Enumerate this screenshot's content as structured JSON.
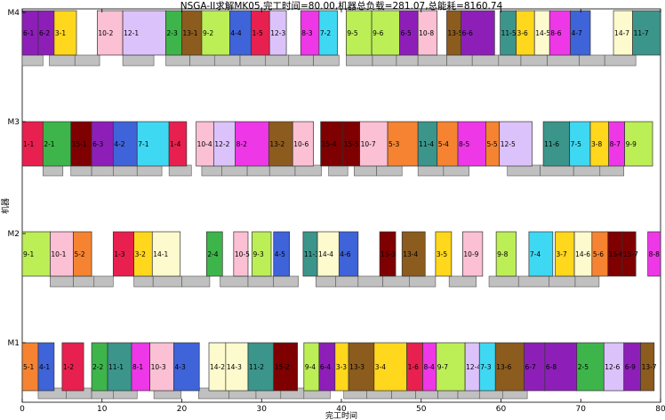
{
  "chart_data": {
    "type": "gantt",
    "title": "NSGA-II求解MK05,完工时间=80.00,机器总负载=281.07,总能耗=8160.74",
    "xlabel": "完工时间",
    "ylabel": "机器",
    "xlim": [
      0,
      80
    ],
    "xticks": [
      0,
      10,
      20,
      30,
      40,
      50,
      60,
      70,
      80
    ],
    "machines": [
      "M1",
      "M2",
      "M3",
      "M4"
    ],
    "job_colors": {
      "1": "#e8204f",
      "2": "#3db54a",
      "3": "#ffd71c",
      "4": "#3f63d8",
      "5": "#f58331",
      "6": "#8d1fb8",
      "7": "#3fd8f2",
      "8": "#ee37e7",
      "9": "#bcee56",
      "10": "#fbc0d3",
      "11": "#3b958a",
      "12": "#dcc2fb",
      "13": "#8c5b1e",
      "14": "#fdfacd",
      "15": "#7f0000"
    },
    "setup_color": "#c0c0c0",
    "tasks": [
      {
        "m": "M1",
        "label": "5-1",
        "job": 5,
        "start": 0.0,
        "end": 2.0
      },
      {
        "m": "M1",
        "label": "4-1",
        "job": 4,
        "start": 2.0,
        "end": 4.0
      },
      {
        "m": "M1",
        "label": "1-2",
        "job": 1,
        "start": 5.0,
        "end": 7.7
      },
      {
        "m": "M1",
        "label": "2-2",
        "job": 2,
        "start": 8.7,
        "end": 10.7
      },
      {
        "m": "M1",
        "label": "11-1",
        "job": 11,
        "start": 10.7,
        "end": 13.7
      },
      {
        "m": "M1",
        "label": "8-1",
        "job": 8,
        "start": 13.7,
        "end": 16.0
      },
      {
        "m": "M1",
        "label": "10-3",
        "job": 10,
        "start": 16.0,
        "end": 19.0
      },
      {
        "m": "M1",
        "label": "4-3",
        "job": 4,
        "start": 19.0,
        "end": 22.2
      },
      {
        "m": "M1",
        "label": "14-2",
        "job": 14,
        "start": 23.4,
        "end": 25.5
      },
      {
        "m": "M1",
        "label": "14-3",
        "job": 14,
        "start": 25.5,
        "end": 28.3
      },
      {
        "m": "M1",
        "label": "11-2",
        "job": 11,
        "start": 28.3,
        "end": 31.5
      },
      {
        "m": "M1",
        "label": "15-2",
        "job": 15,
        "start": 31.5,
        "end": 34.5
      },
      {
        "m": "M1",
        "label": "9-4",
        "job": 9,
        "start": 35.3,
        "end": 37.2
      },
      {
        "m": "M1",
        "label": "6-4",
        "job": 6,
        "start": 37.2,
        "end": 39.2
      },
      {
        "m": "M1",
        "label": "3-3",
        "job": 3,
        "start": 39.2,
        "end": 40.9
      },
      {
        "m": "M1",
        "label": "13-3",
        "job": 13,
        "start": 40.9,
        "end": 44.1
      },
      {
        "m": "M1",
        "label": "3-4",
        "job": 3,
        "start": 44.1,
        "end": 48.2
      },
      {
        "m": "M1",
        "label": "1-6",
        "job": 1,
        "start": 48.2,
        "end": 50.2
      },
      {
        "m": "M1",
        "label": "8-4",
        "job": 8,
        "start": 50.2,
        "end": 51.9
      },
      {
        "m": "M1",
        "label": "9-7",
        "job": 9,
        "start": 51.9,
        "end": 55.5
      },
      {
        "m": "M1",
        "label": "12-4",
        "job": 12,
        "start": 55.5,
        "end": 57.3
      },
      {
        "m": "M1",
        "label": "7-3",
        "job": 7,
        "start": 57.3,
        "end": 59.3
      },
      {
        "m": "M1",
        "label": "13-6",
        "job": 13,
        "start": 59.3,
        "end": 62.9
      },
      {
        "m": "M1",
        "label": "6-7",
        "job": 6,
        "start": 62.9,
        "end": 65.5
      },
      {
        "m": "M1",
        "label": "6-8",
        "job": 6,
        "start": 65.5,
        "end": 69.5
      },
      {
        "m": "M1",
        "label": "2-5",
        "job": 2,
        "start": 69.5,
        "end": 72.9
      },
      {
        "m": "M1",
        "label": "12-6",
        "job": 12,
        "start": 72.9,
        "end": 75.4
      },
      {
        "m": "M1",
        "label": "6-9",
        "job": 6,
        "start": 75.4,
        "end": 77.5
      },
      {
        "m": "M1",
        "label": "13-7",
        "job": 13,
        "start": 77.5,
        "end": 79.2
      },
      {
        "m": "M2",
        "label": "9-1",
        "job": 9,
        "start": 0.0,
        "end": 3.5
      },
      {
        "m": "M2",
        "label": "10-1",
        "job": 10,
        "start": 3.5,
        "end": 6.4
      },
      {
        "m": "M2",
        "label": "5-2",
        "job": 5,
        "start": 6.4,
        "end": 8.7
      },
      {
        "m": "M2",
        "label": "1-3",
        "job": 1,
        "start": 11.4,
        "end": 14.0
      },
      {
        "m": "M2",
        "label": "3-2",
        "job": 3,
        "start": 14.0,
        "end": 16.3
      },
      {
        "m": "M2",
        "label": "14-1",
        "job": 14,
        "start": 16.3,
        "end": 19.8
      },
      {
        "m": "M2",
        "label": "2-4",
        "job": 2,
        "start": 23.1,
        "end": 25.1
      },
      {
        "m": "M2",
        "label": "10-5",
        "job": 10,
        "start": 26.5,
        "end": 28.3
      },
      {
        "m": "M2",
        "label": "9-3",
        "job": 9,
        "start": 28.8,
        "end": 31.2
      },
      {
        "m": "M2",
        "label": "4-5",
        "job": 4,
        "start": 31.5,
        "end": 33.5
      },
      {
        "m": "M2",
        "label": "11-3",
        "job": 11,
        "start": 35.2,
        "end": 37.0
      },
      {
        "m": "M2",
        "label": "14-4",
        "job": 14,
        "start": 37.0,
        "end": 39.7
      },
      {
        "m": "M2",
        "label": "4-6",
        "job": 4,
        "start": 39.7,
        "end": 42.1
      },
      {
        "m": "M2",
        "label": "15-3",
        "job": 15,
        "start": 44.8,
        "end": 46.8
      },
      {
        "m": "M2",
        "label": "13-4",
        "job": 13,
        "start": 47.6,
        "end": 50.5
      },
      {
        "m": "M2",
        "label": "3-5",
        "job": 3,
        "start": 51.8,
        "end": 53.8
      },
      {
        "m": "M2",
        "label": "10-9",
        "job": 10,
        "start": 55.2,
        "end": 57.7
      },
      {
        "m": "M2",
        "label": "9-8",
        "job": 9,
        "start": 59.4,
        "end": 61.9
      },
      {
        "m": "M2",
        "label": "7-4",
        "job": 7,
        "start": 63.5,
        "end": 66.5
      },
      {
        "m": "M2",
        "label": "3-7",
        "job": 3,
        "start": 66.8,
        "end": 69.2
      },
      {
        "m": "M2",
        "label": "14-6",
        "job": 14,
        "start": 69.2,
        "end": 71.4
      },
      {
        "m": "M2",
        "label": "5-6",
        "job": 5,
        "start": 71.4,
        "end": 73.4
      },
      {
        "m": "M2",
        "label": "15-6",
        "job": 15,
        "start": 73.4,
        "end": 75.2
      },
      {
        "m": "M2",
        "label": "15-7",
        "job": 15,
        "start": 75.2,
        "end": 76.9
      },
      {
        "m": "M2",
        "label": "8-8",
        "job": 8,
        "start": 78.4,
        "end": 80.0
      },
      {
        "m": "M3",
        "label": "1-1",
        "job": 1,
        "start": 0.0,
        "end": 2.6
      },
      {
        "m": "M3",
        "label": "2-1",
        "job": 2,
        "start": 2.6,
        "end": 6.1
      },
      {
        "m": "M3",
        "label": "15-1",
        "job": 15,
        "start": 6.1,
        "end": 8.7
      },
      {
        "m": "M3",
        "label": "6-3",
        "job": 6,
        "start": 8.7,
        "end": 11.4
      },
      {
        "m": "M3",
        "label": "4-2",
        "job": 4,
        "start": 11.4,
        "end": 14.4
      },
      {
        "m": "M3",
        "label": "7-1",
        "job": 7,
        "start": 14.4,
        "end": 18.4
      },
      {
        "m": "M3",
        "label": "1-4",
        "job": 1,
        "start": 18.4,
        "end": 20.6
      },
      {
        "m": "M3",
        "label": "10-4",
        "job": 10,
        "start": 21.8,
        "end": 24.0
      },
      {
        "m": "M3",
        "label": "12-2",
        "job": 12,
        "start": 24.0,
        "end": 26.7
      },
      {
        "m": "M3",
        "label": "8-2",
        "job": 8,
        "start": 26.7,
        "end": 30.9
      },
      {
        "m": "M3",
        "label": "13-2",
        "job": 13,
        "start": 30.9,
        "end": 33.9
      },
      {
        "m": "M3",
        "label": "10-6",
        "job": 10,
        "start": 33.9,
        "end": 36.5
      },
      {
        "m": "M3",
        "label": "15-4",
        "job": 15,
        "start": 37.4,
        "end": 40.2
      },
      {
        "m": "M3",
        "label": "15-5",
        "job": 15,
        "start": 40.2,
        "end": 42.3
      },
      {
        "m": "M3",
        "label": "10-7",
        "job": 10,
        "start": 42.3,
        "end": 45.8
      },
      {
        "m": "M3",
        "label": "5-3",
        "job": 5,
        "start": 45.8,
        "end": 49.6
      },
      {
        "m": "M3",
        "label": "11-4",
        "job": 11,
        "start": 49.6,
        "end": 52.0
      },
      {
        "m": "M3",
        "label": "5-4",
        "job": 5,
        "start": 52.0,
        "end": 54.6
      },
      {
        "m": "M3",
        "label": "8-5",
        "job": 8,
        "start": 54.6,
        "end": 58.1
      },
      {
        "m": "M3",
        "label": "5-5",
        "job": 5,
        "start": 58.1,
        "end": 59.8
      },
      {
        "m": "M3",
        "label": "12-5",
        "job": 12,
        "start": 59.8,
        "end": 63.9
      },
      {
        "m": "M3",
        "label": "11-6",
        "job": 11,
        "start": 65.3,
        "end": 68.6
      },
      {
        "m": "M3",
        "label": "7-5",
        "job": 7,
        "start": 68.6,
        "end": 71.2
      },
      {
        "m": "M3",
        "label": "3-8",
        "job": 3,
        "start": 71.2,
        "end": 73.5
      },
      {
        "m": "M3",
        "label": "8-7",
        "job": 8,
        "start": 73.5,
        "end": 75.5
      },
      {
        "m": "M3",
        "label": "9-9",
        "job": 9,
        "start": 75.5,
        "end": 79.0
      },
      {
        "m": "M4",
        "label": "6-1",
        "job": 6,
        "start": 0.0,
        "end": 2.0
      },
      {
        "m": "M4",
        "label": "6-2",
        "job": 6,
        "start": 2.0,
        "end": 4.0
      },
      {
        "m": "M4",
        "label": "3-1",
        "job": 3,
        "start": 4.0,
        "end": 6.8
      },
      {
        "m": "M4",
        "label": "10-2",
        "job": 10,
        "start": 9.4,
        "end": 12.6
      },
      {
        "m": "M4",
        "label": "12-1",
        "job": 12,
        "start": 12.6,
        "end": 18.0
      },
      {
        "m": "M4",
        "label": "2-3",
        "job": 2,
        "start": 18.0,
        "end": 20.0
      },
      {
        "m": "M4",
        "label": "13-1",
        "job": 13,
        "start": 20.0,
        "end": 22.5
      },
      {
        "m": "M4",
        "label": "9-2",
        "job": 9,
        "start": 22.5,
        "end": 26.0
      },
      {
        "m": "M4",
        "label": "4-4",
        "job": 4,
        "start": 26.0,
        "end": 28.7
      },
      {
        "m": "M4",
        "label": "1-5",
        "job": 1,
        "start": 28.7,
        "end": 31.0
      },
      {
        "m": "M4",
        "label": "12-3",
        "job": 12,
        "start": 31.0,
        "end": 33.1
      },
      {
        "m": "M4",
        "label": "8-3",
        "job": 8,
        "start": 34.9,
        "end": 37.2
      },
      {
        "m": "M4",
        "label": "7-2",
        "job": 7,
        "start": 37.2,
        "end": 39.5
      },
      {
        "m": "M4",
        "label": "9-5",
        "job": 9,
        "start": 40.6,
        "end": 43.8
      },
      {
        "m": "M4",
        "label": "9-6",
        "job": 9,
        "start": 43.8,
        "end": 47.3
      },
      {
        "m": "M4",
        "label": "6-5",
        "job": 6,
        "start": 47.3,
        "end": 49.6
      },
      {
        "m": "M4",
        "label": "10-8",
        "job": 10,
        "start": 49.6,
        "end": 52.0
      },
      {
        "m": "M4",
        "label": "13-5",
        "job": 13,
        "start": 53.2,
        "end": 55.0
      },
      {
        "m": "M4",
        "label": "6-6",
        "job": 6,
        "start": 55.0,
        "end": 59.2
      },
      {
        "m": "M4",
        "label": "11-5",
        "job": 11,
        "start": 59.9,
        "end": 61.9
      },
      {
        "m": "M4",
        "label": "3-6",
        "job": 3,
        "start": 61.9,
        "end": 64.2
      },
      {
        "m": "M4",
        "label": "14-5",
        "job": 14,
        "start": 64.2,
        "end": 66.1
      },
      {
        "m": "M4",
        "label": "8-6",
        "job": 8,
        "start": 66.1,
        "end": 68.7
      },
      {
        "m": "M4",
        "label": "4-7",
        "job": 4,
        "start": 68.7,
        "end": 71.2
      },
      {
        "m": "M4",
        "label": "14-7",
        "job": 14,
        "start": 74.1,
        "end": 76.5
      },
      {
        "m": "M4",
        "label": "11-7",
        "job": 11,
        "start": 76.5,
        "end": 80.0
      }
    ],
    "setups": [
      {
        "m": "M1",
        "start": 2.0,
        "end": 5.5
      },
      {
        "m": "M1",
        "start": 5.5,
        "end": 8.7
      },
      {
        "m": "M1",
        "start": 8.7,
        "end": 11.4
      },
      {
        "m": "M1",
        "start": 11.4,
        "end": 14.4
      },
      {
        "m": "M1",
        "start": 16.5,
        "end": 19.9
      },
      {
        "m": "M1",
        "start": 22.1,
        "end": 25.9
      },
      {
        "m": "M1",
        "start": 25.9,
        "end": 29.3
      },
      {
        "m": "M1",
        "start": 29.3,
        "end": 32.4
      },
      {
        "m": "M1",
        "start": 32.4,
        "end": 35.3
      },
      {
        "m": "M1",
        "start": 35.3,
        "end": 38.6
      },
      {
        "m": "M1",
        "start": 40.3,
        "end": 43.2
      },
      {
        "m": "M1",
        "start": 43.2,
        "end": 46.3
      },
      {
        "m": "M1",
        "start": 46.3,
        "end": 49.3
      },
      {
        "m": "M1",
        "start": 49.3,
        "end": 52.1
      },
      {
        "m": "M1",
        "start": 52.1,
        "end": 54.6
      },
      {
        "m": "M1",
        "start": 54.6,
        "end": 57.3
      },
      {
        "m": "M1",
        "start": 57.3,
        "end": 60.2
      },
      {
        "m": "M1",
        "start": 60.2,
        "end": 63.3
      },
      {
        "m": "M2",
        "start": 3.5,
        "end": 6.4
      },
      {
        "m": "M2",
        "start": 6.4,
        "end": 9.0
      },
      {
        "m": "M2",
        "start": 9.0,
        "end": 11.4
      },
      {
        "m": "M2",
        "start": 14.0,
        "end": 16.4
      },
      {
        "m": "M2",
        "start": 16.4,
        "end": 20.0
      },
      {
        "m": "M2",
        "start": 20.0,
        "end": 23.5
      },
      {
        "m": "M2",
        "start": 24.8,
        "end": 28.3
      },
      {
        "m": "M2",
        "start": 28.3,
        "end": 31.5
      },
      {
        "m": "M2",
        "start": 31.5,
        "end": 34.6
      },
      {
        "m": "M2",
        "start": 36.8,
        "end": 39.3
      },
      {
        "m": "M2",
        "start": 39.3,
        "end": 42.1
      },
      {
        "m": "M2",
        "start": 42.1,
        "end": 45.2
      },
      {
        "m": "M2",
        "start": 45.2,
        "end": 48.5
      },
      {
        "m": "M2",
        "start": 48.5,
        "end": 51.8
      },
      {
        "m": "M2",
        "start": 53.5,
        "end": 56.9
      },
      {
        "m": "M2",
        "start": 58.5,
        "end": 62.2
      },
      {
        "m": "M2",
        "start": 62.2,
        "end": 66.0
      },
      {
        "m": "M2",
        "start": 66.0,
        "end": 69.3
      },
      {
        "m": "M2",
        "start": 69.3,
        "end": 72.3
      },
      {
        "m": "M3",
        "start": 2.6,
        "end": 5.1
      },
      {
        "m": "M3",
        "start": 6.1,
        "end": 8.7
      },
      {
        "m": "M3",
        "start": 8.7,
        "end": 11.4
      },
      {
        "m": "M3",
        "start": 11.4,
        "end": 14.4
      },
      {
        "m": "M3",
        "start": 14.4,
        "end": 17.5
      },
      {
        "m": "M3",
        "start": 18.4,
        "end": 21.2
      },
      {
        "m": "M3",
        "start": 22.5,
        "end": 25.0
      },
      {
        "m": "M3",
        "start": 25.0,
        "end": 28.2
      },
      {
        "m": "M3",
        "start": 28.2,
        "end": 31.0
      },
      {
        "m": "M3",
        "start": 31.0,
        "end": 34.2
      },
      {
        "m": "M3",
        "start": 34.2,
        "end": 37.5
      },
      {
        "m": "M3",
        "start": 38.4,
        "end": 40.8
      },
      {
        "m": "M3",
        "start": 41.6,
        "end": 44.4
      },
      {
        "m": "M3",
        "start": 44.4,
        "end": 47.6
      },
      {
        "m": "M3",
        "start": 49.6,
        "end": 52.8
      },
      {
        "m": "M3",
        "start": 52.8,
        "end": 56.0
      },
      {
        "m": "M3",
        "start": 60.8,
        "end": 64.9
      },
      {
        "m": "M3",
        "start": 64.9,
        "end": 69.1
      },
      {
        "m": "M3",
        "start": 69.1,
        "end": 72.4
      },
      {
        "m": "M3",
        "start": 72.4,
        "end": 75.4
      },
      {
        "m": "M4",
        "start": 0.0,
        "end": 2.6
      },
      {
        "m": "M4",
        "start": 3.4,
        "end": 6.6
      },
      {
        "m": "M4",
        "start": 6.6,
        "end": 9.7
      },
      {
        "m": "M4",
        "start": 12.6,
        "end": 16.5
      },
      {
        "m": "M4",
        "start": 18.0,
        "end": 21.0
      },
      {
        "m": "M4",
        "start": 21.0,
        "end": 24.1
      },
      {
        "m": "M4",
        "start": 24.1,
        "end": 27.3
      },
      {
        "m": "M4",
        "start": 27.3,
        "end": 30.5
      },
      {
        "m": "M4",
        "start": 30.5,
        "end": 33.4
      },
      {
        "m": "M4",
        "start": 33.4,
        "end": 36.5
      },
      {
        "m": "M4",
        "start": 36.5,
        "end": 39.7
      },
      {
        "m": "M4",
        "start": 40.6,
        "end": 43.9
      },
      {
        "m": "M4",
        "start": 43.9,
        "end": 46.9
      },
      {
        "m": "M4",
        "start": 46.9,
        "end": 49.6
      },
      {
        "m": "M4",
        "start": 49.6,
        "end": 53.2
      },
      {
        "m": "M4",
        "start": 53.2,
        "end": 56.4
      },
      {
        "m": "M4",
        "start": 56.4,
        "end": 59.7
      },
      {
        "m": "M4",
        "start": 59.7,
        "end": 62.5
      },
      {
        "m": "M4",
        "start": 62.5,
        "end": 65.8
      },
      {
        "m": "M4",
        "start": 65.8,
        "end": 69.8
      },
      {
        "m": "M4",
        "start": 69.8,
        "end": 73.0
      },
      {
        "m": "M4",
        "start": 73.0,
        "end": 76.9
      }
    ]
  }
}
